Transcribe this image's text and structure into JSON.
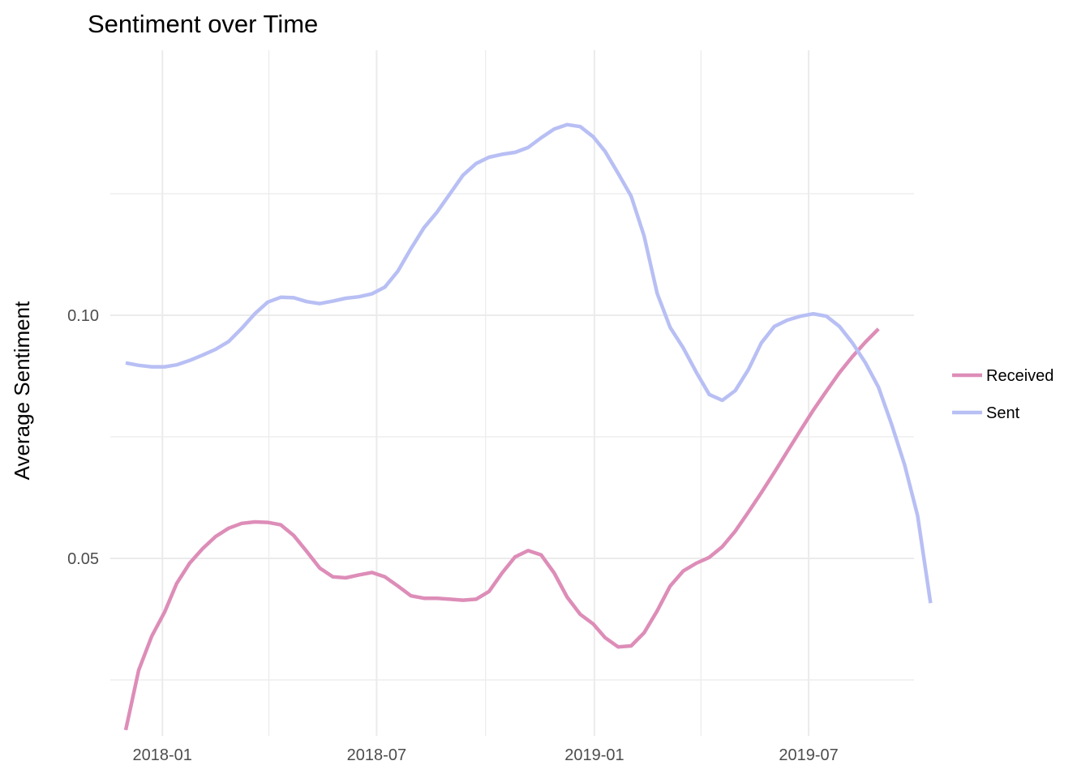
{
  "chart_data": {
    "type": "line",
    "title": "Sentiment over Time",
    "xlabel": "",
    "ylabel": "Average Sentiment",
    "grid": true,
    "legend_position": "right",
    "x_ticks": [
      "2018-01",
      "2018-07",
      "2019-01",
      "2019-07"
    ],
    "y_ticks": [
      {
        "value": 0.05,
        "label": "0.05"
      },
      {
        "value": 0.1,
        "label": "0.10"
      }
    ],
    "xlim": [
      "2017-11-18",
      "2019-09-28"
    ],
    "ylim": [
      0.0135,
      0.1545
    ],
    "series": [
      {
        "name": "Received",
        "color": "#dd8db8",
        "points": [
          [
            "2017-12-01",
            0.0147
          ],
          [
            "2017-12-12",
            0.027
          ],
          [
            "2017-12-23",
            0.034
          ],
          [
            "2018-01-03",
            0.039
          ],
          [
            "2018-01-13",
            0.0448
          ],
          [
            "2018-01-24",
            0.049
          ],
          [
            "2018-02-04",
            0.052
          ],
          [
            "2018-02-15",
            0.0545
          ],
          [
            "2018-02-26",
            0.0562
          ],
          [
            "2018-03-09",
            0.0572
          ],
          [
            "2018-03-20",
            0.0575
          ],
          [
            "2018-03-31",
            0.0574
          ],
          [
            "2018-04-11",
            0.0569
          ],
          [
            "2018-04-22",
            0.0547
          ],
          [
            "2018-05-03",
            0.0514
          ],
          [
            "2018-05-14",
            0.048
          ],
          [
            "2018-05-25",
            0.0462
          ],
          [
            "2018-06-05",
            0.046
          ],
          [
            "2018-06-16",
            0.0466
          ],
          [
            "2018-06-27",
            0.0471
          ],
          [
            "2018-07-08",
            0.0462
          ],
          [
            "2018-07-19",
            0.0443
          ],
          [
            "2018-07-30",
            0.0423
          ],
          [
            "2018-08-10",
            0.0418
          ],
          [
            "2018-08-21",
            0.0418
          ],
          [
            "2018-09-01",
            0.0416
          ],
          [
            "2018-09-12",
            0.0414
          ],
          [
            "2018-09-23",
            0.0416
          ],
          [
            "2018-10-04",
            0.0432
          ],
          [
            "2018-10-15",
            0.047
          ],
          [
            "2018-10-26",
            0.0503
          ],
          [
            "2018-11-06",
            0.0516
          ],
          [
            "2018-11-17",
            0.0507
          ],
          [
            "2018-11-28",
            0.047
          ],
          [
            "2018-12-09",
            0.042
          ],
          [
            "2018-12-20",
            0.0385
          ],
          [
            "2018-12-31",
            0.0365
          ],
          [
            "2019-01-10",
            0.0337
          ],
          [
            "2019-01-21",
            0.0318
          ],
          [
            "2019-02-01",
            0.032
          ],
          [
            "2019-02-12",
            0.0347
          ],
          [
            "2019-02-23",
            0.0392
          ],
          [
            "2019-03-06",
            0.0443
          ],
          [
            "2019-03-17",
            0.0474
          ],
          [
            "2019-03-28",
            0.049
          ],
          [
            "2019-04-08",
            0.0502
          ],
          [
            "2019-04-19",
            0.0524
          ],
          [
            "2019-04-30",
            0.0556
          ],
          [
            "2019-05-11",
            0.0595
          ],
          [
            "2019-05-22",
            0.0635
          ],
          [
            "2019-06-02",
            0.0677
          ],
          [
            "2019-06-13",
            0.072
          ],
          [
            "2019-06-24",
            0.0763
          ],
          [
            "2019-07-05",
            0.0805
          ],
          [
            "2019-07-16",
            0.0844
          ],
          [
            "2019-07-27",
            0.0882
          ],
          [
            "2019-08-07",
            0.0915
          ],
          [
            "2019-08-18",
            0.0945
          ],
          [
            "2019-08-29",
            0.0972
          ]
        ]
      },
      {
        "name": "Sent",
        "color": "#b8bff4",
        "points": [
          [
            "2017-12-01",
            0.0902
          ],
          [
            "2017-12-12",
            0.0897
          ],
          [
            "2017-12-23",
            0.0894
          ],
          [
            "2018-01-03",
            0.0894
          ],
          [
            "2018-01-13",
            0.0898
          ],
          [
            "2018-01-24",
            0.0907
          ],
          [
            "2018-02-04",
            0.0918
          ],
          [
            "2018-02-15",
            0.093
          ],
          [
            "2018-02-26",
            0.0946
          ],
          [
            "2018-03-09",
            0.0973
          ],
          [
            "2018-03-20",
            0.1003
          ],
          [
            "2018-03-31",
            0.1027
          ],
          [
            "2018-04-11",
            0.1037
          ],
          [
            "2018-04-22",
            0.1036
          ],
          [
            "2018-05-03",
            0.1028
          ],
          [
            "2018-05-14",
            0.1024
          ],
          [
            "2018-05-25",
            0.1029
          ],
          [
            "2018-06-05",
            0.1035
          ],
          [
            "2018-06-16",
            0.1038
          ],
          [
            "2018-06-27",
            0.1044
          ],
          [
            "2018-07-08",
            0.1058
          ],
          [
            "2018-07-19",
            0.1091
          ],
          [
            "2018-07-30",
            0.1137
          ],
          [
            "2018-08-10",
            0.118
          ],
          [
            "2018-08-21",
            0.1212
          ],
          [
            "2018-09-01",
            0.125
          ],
          [
            "2018-09-12",
            0.1288
          ],
          [
            "2018-09-23",
            0.1312
          ],
          [
            "2018-10-04",
            0.1325
          ],
          [
            "2018-10-15",
            0.1331
          ],
          [
            "2018-10-26",
            0.1335
          ],
          [
            "2018-11-06",
            0.1345
          ],
          [
            "2018-11-17",
            0.1365
          ],
          [
            "2018-11-28",
            0.1383
          ],
          [
            "2018-12-09",
            0.1392
          ],
          [
            "2018-12-20",
            0.1388
          ],
          [
            "2018-12-31",
            0.1367
          ],
          [
            "2019-01-10",
            0.1337
          ],
          [
            "2019-01-21",
            0.1292
          ],
          [
            "2019-02-01",
            0.1245
          ],
          [
            "2019-02-12",
            0.1163
          ],
          [
            "2019-02-23",
            0.1045
          ],
          [
            "2019-03-06",
            0.0975
          ],
          [
            "2019-03-17",
            0.0933
          ],
          [
            "2019-03-28",
            0.0883
          ],
          [
            "2019-04-08",
            0.0837
          ],
          [
            "2019-04-19",
            0.0825
          ],
          [
            "2019-04-30",
            0.0845
          ],
          [
            "2019-05-11",
            0.0888
          ],
          [
            "2019-05-22",
            0.0943
          ],
          [
            "2019-06-02",
            0.0977
          ],
          [
            "2019-06-13",
            0.099
          ],
          [
            "2019-06-24",
            0.0998
          ],
          [
            "2019-07-05",
            0.1003
          ],
          [
            "2019-07-16",
            0.0998
          ],
          [
            "2019-07-27",
            0.0977
          ],
          [
            "2019-08-07",
            0.0943
          ],
          [
            "2019-08-18",
            0.0902
          ],
          [
            "2019-08-29",
            0.0852
          ],
          [
            "2019-09-09",
            0.0776
          ],
          [
            "2019-09-20",
            0.0693
          ],
          [
            "2019-10-01",
            0.0588
          ],
          [
            "2019-10-12",
            0.0408
          ]
        ]
      }
    ]
  }
}
